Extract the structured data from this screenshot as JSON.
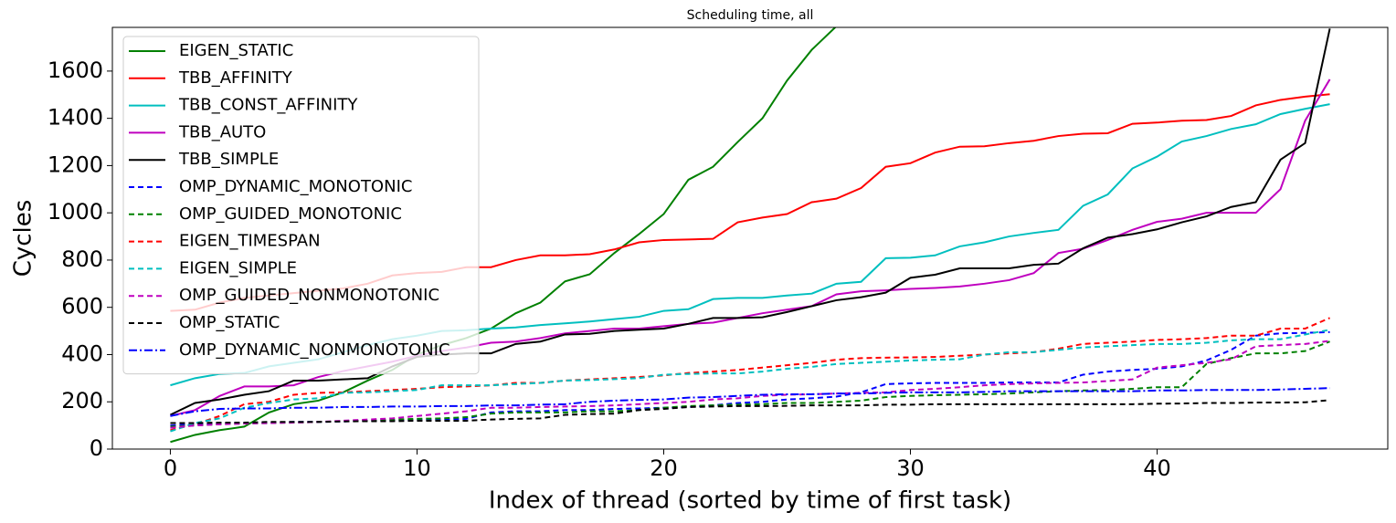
{
  "chart_data": {
    "type": "line",
    "title": "Scheduling time, all",
    "xlabel": "Index of thread (sorted by time of first task)",
    "ylabel": "Cycles",
    "x": [
      0,
      1,
      2,
      3,
      4,
      5,
      6,
      7,
      8,
      9,
      10,
      11,
      12,
      13,
      14,
      15,
      16,
      17,
      18,
      19,
      20,
      21,
      22,
      23,
      24,
      25,
      26,
      27,
      28,
      29,
      30,
      31,
      32,
      33,
      34,
      35,
      36,
      37,
      38,
      39,
      40,
      41,
      42,
      43,
      44,
      45,
      46,
      47
    ],
    "xlim": [
      -2.35,
      49.35
    ],
    "xticks": [
      0,
      10,
      20,
      30,
      40
    ],
    "ylim": [
      0,
      1785
    ],
    "yticks": [
      0,
      200,
      400,
      600,
      800,
      1000,
      1200,
      1400,
      1600
    ],
    "legend": "upper left",
    "series": [
      {
        "name": "EIGEN_STATIC",
        "color": "#008000",
        "dash": "solid",
        "values": [
          30,
          60,
          80,
          95,
          155,
          190,
          205,
          240,
          290,
          335,
          400,
          440,
          470,
          510,
          575,
          620,
          710,
          740,
          830,
          910,
          995,
          1140,
          1195,
          1300,
          1400,
          1560,
          1690,
          1790,
          null,
          null,
          null,
          null,
          null,
          null,
          null,
          null,
          null,
          null,
          null,
          null,
          null,
          null,
          null,
          null,
          null,
          null,
          null,
          null
        ]
      },
      {
        "name": "TBB_AFFINITY",
        "color": "#ff0000",
        "dash": "solid",
        "values": [
          585,
          590,
          620,
          640,
          650,
          660,
          670,
          680,
          700,
          735,
          745,
          750,
          770,
          770,
          800,
          820,
          820,
          825,
          845,
          875,
          885,
          887,
          890,
          960,
          980,
          995,
          1045,
          1060,
          1105,
          1195,
          1210,
          1255,
          1280,
          1282,
          1295,
          1305,
          1325,
          1335,
          1337,
          1377,
          1382,
          1390,
          1393,
          1410,
          1455,
          1478,
          1492,
          1502
        ]
      },
      {
        "name": "TBB_CONST_AFFINITY",
        "color": "#00bfbf",
        "dash": "solid",
        "values": [
          270,
          300,
          318,
          322,
          350,
          365,
          380,
          410,
          440,
          465,
          480,
          500,
          503,
          510,
          515,
          525,
          532,
          540,
          550,
          560,
          585,
          592,
          635,
          640,
          640,
          650,
          658,
          700,
          708,
          808,
          810,
          820,
          858,
          875,
          900,
          915,
          928,
          1030,
          1078,
          1188,
          1238,
          1302,
          1325,
          1355,
          1375,
          1418,
          1440,
          1460
        ]
      },
      {
        "name": "TBB_AUTO",
        "color": "#bf00bf",
        "dash": "solid",
        "values": [
          140,
          165,
          225,
          265,
          265,
          270,
          305,
          330,
          350,
          370,
          395,
          415,
          430,
          450,
          455,
          470,
          490,
          500,
          510,
          510,
          520,
          530,
          535,
          555,
          575,
          590,
          605,
          655,
          668,
          672,
          678,
          682,
          688,
          700,
          715,
          745,
          830,
          848,
          885,
          928,
          962,
          975,
          1000,
          1000,
          1000,
          1100,
          1390,
          1565
        ]
      },
      {
        "name": "TBB_SIMPLE",
        "color": "#000000",
        "dash": "solid",
        "values": [
          145,
          195,
          210,
          230,
          245,
          290,
          290,
          295,
          300,
          350,
          390,
          400,
          405,
          405,
          445,
          455,
          485,
          488,
          500,
          505,
          510,
          530,
          555,
          555,
          558,
          580,
          605,
          630,
          643,
          662,
          725,
          738,
          765,
          765,
          765,
          780,
          785,
          850,
          895,
          910,
          930,
          960,
          985,
          1025,
          1045,
          1225,
          1295,
          1780
        ]
      },
      {
        "name": "OMP_DYNAMIC_MONOTONIC",
        "color": "#0000ff",
        "dash": "dashed",
        "values": [
          100,
          105,
          108,
          112,
          112,
          115,
          115,
          117,
          120,
          120,
          125,
          125,
          128,
          155,
          160,
          160,
          165,
          165,
          170,
          172,
          175,
          178,
          185,
          195,
          200,
          210,
          215,
          222,
          240,
          275,
          278,
          280,
          280,
          280,
          282,
          282,
          282,
          315,
          328,
          335,
          340,
          350,
          375,
          420,
          480,
          490,
          492,
          495
        ]
      },
      {
        "name": "OMP_GUIDED_MONOTONIC",
        "color": "#008000",
        "dash": "dashed",
        "values": [
          95,
          100,
          105,
          108,
          110,
          112,
          115,
          118,
          120,
          125,
          128,
          130,
          135,
          150,
          155,
          155,
          155,
          160,
          160,
          165,
          175,
          182,
          185,
          188,
          190,
          195,
          195,
          200,
          205,
          220,
          225,
          228,
          230,
          232,
          235,
          240,
          245,
          248,
          250,
          255,
          262,
          262,
          360,
          385,
          405,
          405,
          415,
          455
        ]
      },
      {
        "name": "EIGEN_TIMESPAN",
        "color": "#ff0000",
        "dash": "dashed",
        "values": [
          80,
          105,
          140,
          190,
          200,
          230,
          238,
          240,
          245,
          250,
          255,
          262,
          265,
          270,
          280,
          280,
          290,
          295,
          300,
          305,
          312,
          322,
          328,
          335,
          345,
          355,
          365,
          378,
          385,
          387,
          388,
          390,
          395,
          400,
          405,
          410,
          425,
          445,
          450,
          455,
          462,
          465,
          470,
          480,
          480,
          510,
          510,
          555
        ]
      },
      {
        "name": "EIGEN_SIMPLE",
        "color": "#00bfbf",
        "dash": "dashed",
        "values": [
          75,
          110,
          130,
          175,
          195,
          210,
          215,
          238,
          240,
          245,
          250,
          270,
          270,
          270,
          275,
          280,
          290,
          292,
          296,
          300,
          315,
          318,
          320,
          320,
          328,
          340,
          348,
          360,
          365,
          370,
          375,
          378,
          380,
          400,
          410,
          410,
          420,
          430,
          435,
          440,
          445,
          445,
          450,
          460,
          465,
          465,
          485,
          505
        ]
      },
      {
        "name": "OMP_GUIDED_NONMONOTONIC",
        "color": "#bf00bf",
        "dash": "dashed",
        "values": [
          90,
          100,
          105,
          108,
          110,
          112,
          115,
          120,
          125,
          130,
          140,
          150,
          160,
          175,
          175,
          178,
          180,
          182,
          185,
          190,
          195,
          200,
          210,
          215,
          225,
          230,
          232,
          235,
          238,
          240,
          250,
          255,
          262,
          270,
          275,
          278,
          280,
          282,
          288,
          295,
          345,
          355,
          365,
          380,
          435,
          440,
          445,
          458
        ]
      },
      {
        "name": "OMP_STATIC",
        "color": "#000000",
        "dash": "dashed",
        "values": [
          110,
          110,
          112,
          112,
          115,
          115,
          115,
          117,
          118,
          118,
          120,
          120,
          120,
          125,
          128,
          130,
          145,
          148,
          150,
          165,
          170,
          178,
          180,
          182,
          182,
          183,
          185,
          185,
          185,
          188,
          188,
          190,
          190,
          190,
          190,
          190,
          190,
          190,
          190,
          190,
          192,
          193,
          195,
          195,
          197,
          197,
          198,
          207
        ]
      },
      {
        "name": "OMP_DYNAMIC_NONMONOTONIC",
        "color": "#0000ff",
        "dash": "dashdot",
        "values": [
          140,
          160,
          170,
          172,
          172,
          175,
          175,
          178,
          178,
          180,
          180,
          182,
          182,
          185,
          185,
          188,
          190,
          200,
          205,
          208,
          210,
          218,
          220,
          225,
          230,
          232,
          232,
          235,
          235,
          238,
          240,
          240,
          240,
          242,
          245,
          245,
          245,
          245,
          245,
          245,
          248,
          248,
          250,
          250,
          250,
          252,
          255,
          258
        ]
      }
    ]
  }
}
